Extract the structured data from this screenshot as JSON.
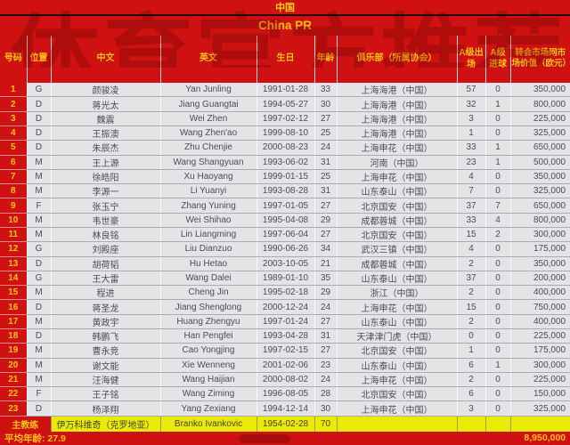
{
  "title": "中国",
  "subtitle": "China PR",
  "watermark": "体育官方推荐",
  "columns": [
    "号码",
    "位置",
    "中文",
    "英文",
    "生日",
    "年龄",
    "俱乐部（所属协会）",
    "A级出场",
    "A级进球",
    "转会市场网市场价值（欧元）"
  ],
  "players": [
    {
      "no": "1",
      "pos": "G",
      "cn": "颜骏凌",
      "en": "Yan Junling",
      "birth": "1991-01-28",
      "age": "33",
      "club": "上海海港（中国）",
      "caps": "57",
      "goals": "0",
      "value": "350,000"
    },
    {
      "no": "2",
      "pos": "D",
      "cn": "蒋光太",
      "en": "Jiang Guangtai",
      "birth": "1994-05-27",
      "age": "30",
      "club": "上海海港（中国）",
      "caps": "32",
      "goals": "1",
      "value": "800,000"
    },
    {
      "no": "3",
      "pos": "D",
      "cn": "魏震",
      "en": "Wei Zhen",
      "birth": "1997-02-12",
      "age": "27",
      "club": "上海海港（中国）",
      "caps": "3",
      "goals": "0",
      "value": "225,000"
    },
    {
      "no": "4",
      "pos": "D",
      "cn": "王振澳",
      "en": "Wang Zhen'ao",
      "birth": "1999-08-10",
      "age": "25",
      "club": "上海海港（中国）",
      "caps": "1",
      "goals": "0",
      "value": "325,000"
    },
    {
      "no": "5",
      "pos": "D",
      "cn": "朱辰杰",
      "en": "Zhu Chenjie",
      "birth": "2000-08-23",
      "age": "24",
      "club": "上海申花（中国）",
      "caps": "33",
      "goals": "1",
      "value": "650,000"
    },
    {
      "no": "6",
      "pos": "M",
      "cn": "王上源",
      "en": "Wang Shangyuan",
      "birth": "1993-06-02",
      "age": "31",
      "club": "河南（中国）",
      "caps": "23",
      "goals": "1",
      "value": "500,000"
    },
    {
      "no": "7",
      "pos": "M",
      "cn": "徐皓阳",
      "en": "Xu Haoyang",
      "birth": "1999-01-15",
      "age": "25",
      "club": "上海申花（中国）",
      "caps": "4",
      "goals": "0",
      "value": "350,000"
    },
    {
      "no": "8",
      "pos": "M",
      "cn": "李源一",
      "en": "Li Yuanyi",
      "birth": "1993-08-28",
      "age": "31",
      "club": "山东泰山（中国）",
      "caps": "7",
      "goals": "0",
      "value": "325,000"
    },
    {
      "no": "9",
      "pos": "F",
      "cn": "张玉宁",
      "en": "Zhang Yuning",
      "birth": "1997-01-05",
      "age": "27",
      "club": "北京国安（中国）",
      "caps": "37",
      "goals": "7",
      "value": "650,000"
    },
    {
      "no": "10",
      "pos": "M",
      "cn": "韦世豪",
      "en": "Wei Shihao",
      "birth": "1995-04-08",
      "age": "29",
      "club": "成都蓉城（中国）",
      "caps": "33",
      "goals": "4",
      "value": "800,000"
    },
    {
      "no": "11",
      "pos": "M",
      "cn": "林良铭",
      "en": "Lin Liangming",
      "birth": "1997-06-04",
      "age": "27",
      "club": "北京国安（中国）",
      "caps": "15",
      "goals": "2",
      "value": "300,000"
    },
    {
      "no": "12",
      "pos": "G",
      "cn": "刘殿座",
      "en": "Liu Dianzuo",
      "birth": "1990-06-26",
      "age": "34",
      "club": "武汉三镇（中国）",
      "caps": "4",
      "goals": "0",
      "value": "175,000"
    },
    {
      "no": "13",
      "pos": "D",
      "cn": "胡荷韬",
      "en": "Hu Hetao",
      "birth": "2003-10-05",
      "age": "21",
      "club": "成都蓉城（中国）",
      "caps": "2",
      "goals": "0",
      "value": "350,000"
    },
    {
      "no": "14",
      "pos": "G",
      "cn": "王大雷",
      "en": "Wang Dalei",
      "birth": "1989-01-10",
      "age": "35",
      "club": "山东泰山（中国）",
      "caps": "37",
      "goals": "0",
      "value": "200,000"
    },
    {
      "no": "15",
      "pos": "M",
      "cn": "程进",
      "en": "Cheng Jin",
      "birth": "1995-02-18",
      "age": "29",
      "club": "浙江（中国）",
      "caps": "2",
      "goals": "0",
      "value": "400,000"
    },
    {
      "no": "16",
      "pos": "D",
      "cn": "蒋圣龙",
      "en": "Jiang Shenglong",
      "birth": "2000-12-24",
      "age": "24",
      "club": "上海申花（中国）",
      "caps": "15",
      "goals": "0",
      "value": "750,000"
    },
    {
      "no": "17",
      "pos": "M",
      "cn": "黄政宇",
      "en": "Huang Zhengyu",
      "birth": "1997-01-24",
      "age": "27",
      "club": "山东泰山（中国）",
      "caps": "2",
      "goals": "0",
      "value": "400,000"
    },
    {
      "no": "18",
      "pos": "D",
      "cn": "韩鹏飞",
      "en": "Han Pengfei",
      "birth": "1993-04-28",
      "age": "31",
      "club": "天津津门虎（中国）",
      "caps": "0",
      "goals": "0",
      "value": "225,000"
    },
    {
      "no": "19",
      "pos": "M",
      "cn": "曹永竞",
      "en": "Cao Yongjing",
      "birth": "1997-02-15",
      "age": "27",
      "club": "北京国安（中国）",
      "caps": "1",
      "goals": "0",
      "value": "175,000"
    },
    {
      "no": "20",
      "pos": "M",
      "cn": "谢文能",
      "en": "Xie Wenneng",
      "birth": "2001-02-06",
      "age": "23",
      "club": "山东泰山（中国）",
      "caps": "6",
      "goals": "1",
      "value": "300,000"
    },
    {
      "no": "21",
      "pos": "M",
      "cn": "汪海健",
      "en": "Wang Haijian",
      "birth": "2000-08-02",
      "age": "24",
      "club": "上海申花（中国）",
      "caps": "2",
      "goals": "0",
      "value": "225,000"
    },
    {
      "no": "22",
      "pos": "F",
      "cn": "王子铭",
      "en": "Wang Ziming",
      "birth": "1996-08-05",
      "age": "28",
      "club": "北京国安（中国）",
      "caps": "6",
      "goals": "0",
      "value": "150,000"
    },
    {
      "no": "23",
      "pos": "D",
      "cn": "杨泽翔",
      "en": "Yang Zexiang",
      "birth": "1994-12-14",
      "age": "30",
      "club": "上海申花（中国）",
      "caps": "3",
      "goals": "0",
      "value": "325,000"
    }
  ],
  "coach": {
    "label": "主教练",
    "cn": "伊万科维奇（克罗地亚）",
    "en": "Branko Ivankovic",
    "birth": "1954-02-28",
    "age": "70"
  },
  "footer": {
    "avg_label": "平均年龄: 27.9",
    "total": "8,950,000"
  }
}
